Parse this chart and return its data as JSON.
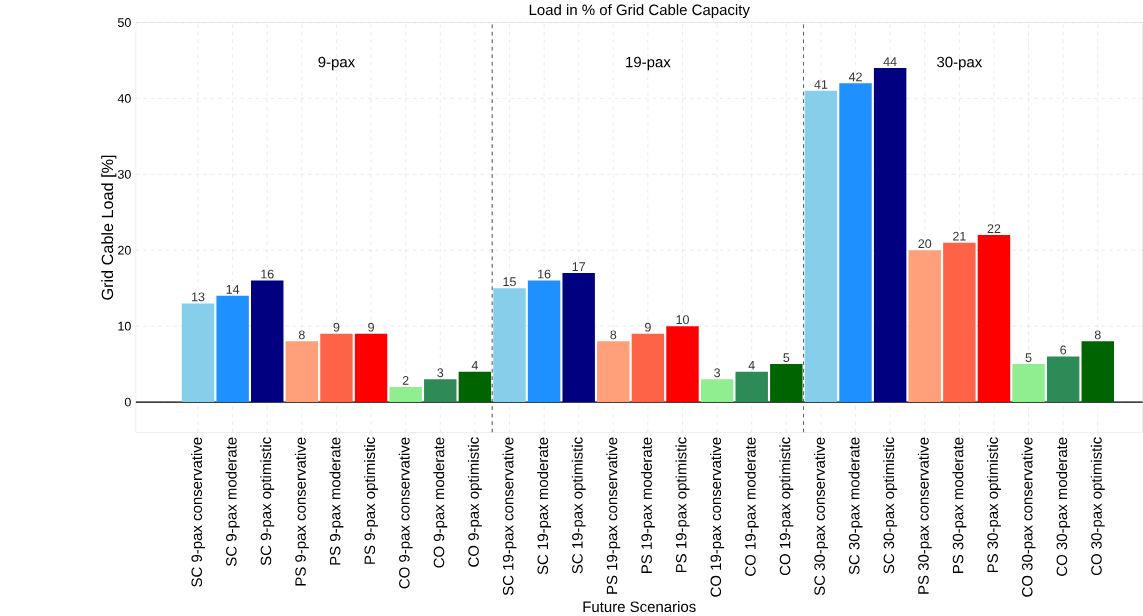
{
  "chart_data": {
    "type": "bar",
    "title": "Load in % of Grid Cable Capacity",
    "xlabel": "Future Scenarios",
    "ylabel": "Grid Cable Load [%]",
    "categories": [
      "SC 9-pax conservative",
      "SC 9-pax moderate",
      "SC 9-pax optimistic",
      "PS 9-pax conservative",
      "PS 9-pax moderate",
      "PS 9-pax optimistic",
      "CO 9-pax conservative",
      "CO 9-pax moderate",
      "CO 9-pax optimistic",
      "SC 19-pax conservative",
      "SC 19-pax moderate",
      "SC 19-pax optimistic",
      "PS 19-pax conservative",
      "PS 19-pax moderate",
      "PS 19-pax optimistic",
      "CO 19-pax conservative",
      "CO 19-pax moderate",
      "CO 19-pax optimistic",
      "SC 30-pax conservative",
      "SC 30-pax moderate",
      "SC 30-pax optimistic",
      "PS 30-pax conservative",
      "PS 30-pax moderate",
      "PS 30-pax optimistic",
      "CO 30-pax conservative",
      "CO 30-pax moderate",
      "CO 30-pax optimistic"
    ],
    "values": [
      13,
      14,
      16,
      8,
      9,
      9,
      2,
      3,
      4,
      15,
      16,
      17,
      8,
      9,
      10,
      3,
      4,
      5,
      41,
      42,
      44,
      20,
      21,
      22,
      5,
      6,
      8
    ],
    "colors": [
      "#87ceeb",
      "#1e90ff",
      "#000080",
      "#ffa07a",
      "#ff6347",
      "#ff0000",
      "#90ee90",
      "#2e8b57",
      "#006400",
      "#87ceeb",
      "#1e90ff",
      "#000080",
      "#ffa07a",
      "#ff6347",
      "#ff0000",
      "#90ee90",
      "#2e8b57",
      "#006400",
      "#87ceeb",
      "#1e90ff",
      "#000080",
      "#ffa07a",
      "#ff6347",
      "#ff0000",
      "#90ee90",
      "#2e8b57",
      "#006400"
    ],
    "data_labels": true,
    "ylim": [
      -4,
      50
    ],
    "yticks": [
      0,
      10,
      20,
      30,
      40,
      50
    ],
    "grid": true,
    "ref_lines": [
      {
        "axis": "y",
        "value": 0,
        "color": "#000000",
        "line_style": "solid"
      }
    ],
    "annotations": [
      "9-pax",
      "19-pax",
      "30-pax"
    ]
  }
}
